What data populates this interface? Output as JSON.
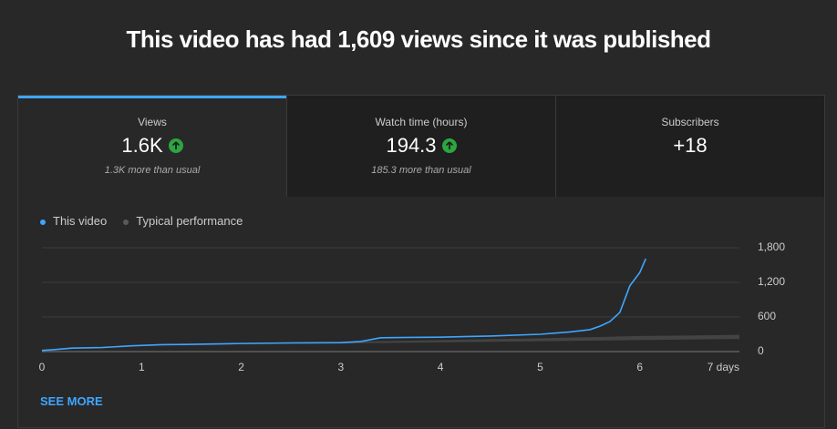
{
  "header": {
    "title": "This video has had 1,609 views since it was published"
  },
  "tabs": [
    {
      "label": "Views",
      "value": "1.6K",
      "note": "1.3K more than usual"
    },
    {
      "label": "Watch time (hours)",
      "value": "194.3",
      "note": "185.3 more than usual"
    },
    {
      "label": "Subscribers",
      "value": "+18"
    }
  ],
  "chart_data": {
    "type": "line",
    "series": [
      {
        "name": "This video",
        "color": "#3ea6ff",
        "x": [
          0,
          0.1,
          0.3,
          0.6,
          0.9,
          1.2,
          1.5,
          2,
          2.5,
          3,
          3.2,
          3.4,
          3.7,
          4,
          4.5,
          5,
          5.3,
          5.5,
          5.6,
          5.7,
          5.8,
          5.9,
          6,
          6.06
        ],
        "values": [
          20,
          30,
          60,
          70,
          100,
          120,
          125,
          140,
          150,
          155,
          175,
          240,
          245,
          250,
          270,
          300,
          340,
          380,
          440,
          520,
          680,
          1140,
          1370,
          1609
        ]
      },
      {
        "name": "Typical performance",
        "color": "#5a5a5a",
        "x": [
          2,
          3,
          4,
          5,
          6,
          7
        ],
        "low": [
          130,
          140,
          160,
          180,
          200,
          220
        ],
        "values": [
          150,
          170,
          200,
          230,
          270,
          290
        ]
      }
    ],
    "xlim": [
      0,
      7
    ],
    "xticks": [
      0,
      1,
      2,
      3,
      4,
      5,
      6,
      {
        "value": 7,
        "label": "7 days"
      }
    ],
    "ylim": [
      0,
      1800
    ],
    "yticks": [
      0,
      600,
      {
        "value": 1200,
        "label": "1,200"
      },
      {
        "value": 1800,
        "label": "1,800"
      }
    ],
    "grid": true
  },
  "footer": {
    "link": "SEE MORE"
  }
}
